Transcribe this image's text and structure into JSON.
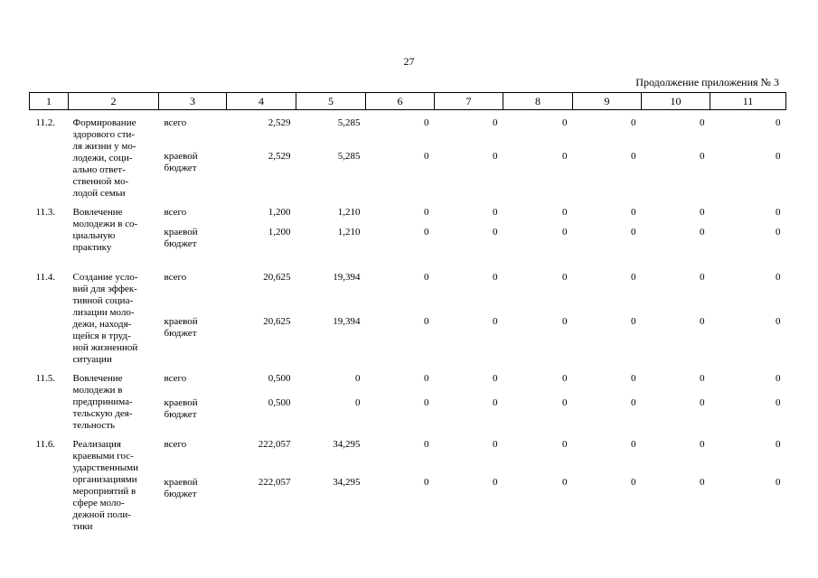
{
  "page_number": "27",
  "continuation_label": "Продолжение приложения № 3",
  "header": [
    "1",
    "2",
    "3",
    "4",
    "5",
    "6",
    "7",
    "8",
    "9",
    "10",
    "11"
  ],
  "rows": [
    {
      "no": "11.2.",
      "name_lines": [
        "Формирование",
        "здорового сти-",
        "ля жизни у мо-",
        "лодежи, соци-",
        "ально ответ-",
        "ственной мо-",
        "лодой семьи"
      ],
      "total": {
        "label": "всего",
        "values": [
          "2,529",
          "5,285",
          "0",
          "0",
          "0",
          "0",
          "0",
          "0"
        ]
      },
      "regional": {
        "label_lines": [
          "краевой",
          "бюджет"
        ],
        "values": [
          "2,529",
          "5,285",
          "0",
          "0",
          "0",
          "0",
          "0",
          "0"
        ]
      }
    },
    {
      "no": "11.3.",
      "name_lines": [
        "Вовлечение",
        "молодежи в со-",
        "циальную",
        "практику"
      ],
      "total": {
        "label": "всего",
        "values": [
          "1,200",
          "1,210",
          "0",
          "0",
          "0",
          "0",
          "0",
          "0"
        ]
      },
      "regional": {
        "label_lines": [
          "краевой",
          "бюджет"
        ],
        "values": [
          "1,200",
          "1,210",
          "0",
          "0",
          "0",
          "0",
          "0",
          "0"
        ]
      }
    },
    {
      "no": "11.4.",
      "name_lines": [
        "Создание усло-",
        "вий для эффек-",
        "тивной социа-",
        "лизации моло-",
        "дежи, находя-",
        "щейся в труд-",
        "ной жизненной",
        "ситуации"
      ],
      "total": {
        "label": "всего",
        "values": [
          "20,625",
          "19,394",
          "0",
          "0",
          "0",
          "0",
          "0",
          "0"
        ]
      },
      "regional": {
        "label_lines": [
          "краевой",
          "бюджет"
        ],
        "values": [
          "20,625",
          "19,394",
          "0",
          "0",
          "0",
          "0",
          "0",
          "0"
        ]
      }
    },
    {
      "no": "11.5.",
      "name_lines": [
        "Вовлечение",
        "молодежи в",
        "предпринима-",
        "тельскую дея-",
        "тельность"
      ],
      "total": {
        "label": "всего",
        "values": [
          "0,500",
          "0",
          "0",
          "0",
          "0",
          "0",
          "0",
          "0"
        ]
      },
      "regional": {
        "label_lines": [
          "краевой",
          "бюджет"
        ],
        "values": [
          "0,500",
          "0",
          "0",
          "0",
          "0",
          "0",
          "0",
          "0"
        ]
      }
    },
    {
      "no": "11.6.",
      "name_lines": [
        "Реализация",
        "краевыми гос-",
        "ударственными",
        "организациями",
        "мероприятий в",
        "сфере моло-",
        "дежной поли-",
        "тики"
      ],
      "total": {
        "label": "всего",
        "values": [
          "222,057",
          "34,295",
          "0",
          "0",
          "0",
          "0",
          "0",
          "0"
        ]
      },
      "regional": {
        "label_lines": [
          "краевой",
          "бюджет"
        ],
        "values": [
          "222,057",
          "34,295",
          "0",
          "0",
          "0",
          "0",
          "0",
          "0"
        ]
      }
    }
  ]
}
